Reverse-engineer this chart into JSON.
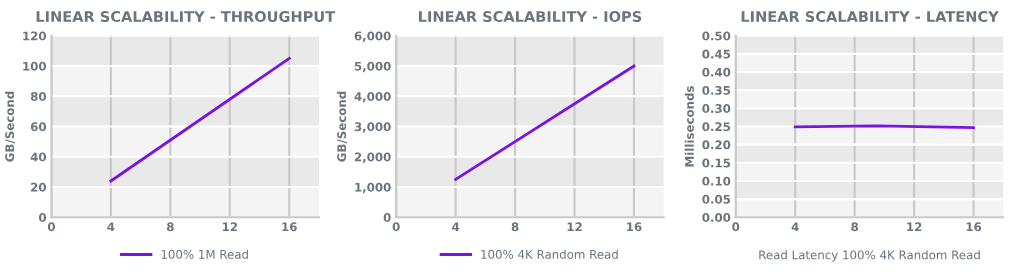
{
  "chart_data": [
    {
      "type": "line",
      "title": "LINEAR SCALABILITY - THROUGHPUT",
      "ylabel": "GB/Second",
      "x": [
        4,
        16
      ],
      "series": [
        {
          "name": "100% 1M Read",
          "color": "#7a12e6",
          "values": [
            24,
            105
          ]
        }
      ],
      "xlim": [
        0,
        18
      ],
      "xticks": [
        0,
        4,
        8,
        12,
        16
      ],
      "ylim": [
        0,
        120
      ],
      "yticks": [
        0,
        20,
        40,
        60,
        80,
        100,
        120
      ],
      "grid": true,
      "legend": "bottom"
    },
    {
      "type": "line",
      "title": "LINEAR SCALABILITY - IOPS",
      "ylabel": "GB/Second",
      "x": [
        4,
        16
      ],
      "series": [
        {
          "name": "100% 4K Random Read",
          "color": "#7a12e6",
          "values": [
            1250,
            5000
          ]
        }
      ],
      "xlim": [
        0,
        18
      ],
      "xticks": [
        0,
        4,
        8,
        12,
        16
      ],
      "ylim": [
        0,
        6000
      ],
      "yticks": [
        {
          "value": 0,
          "label": "0"
        },
        {
          "value": 1000,
          "label": "1,000"
        },
        {
          "value": 2000,
          "label": "2,000"
        },
        {
          "value": 3000,
          "label": "3,000"
        },
        {
          "value": 4000,
          "label": "4,000"
        },
        {
          "value": 5000,
          "label": "5,000"
        },
        {
          "value": 6000,
          "label": "6,000"
        }
      ],
      "grid": true,
      "legend": "bottom"
    },
    {
      "type": "line",
      "title": "LINEAR SCALABILITY - LATENCY",
      "ylabel": "Milliseconds",
      "xlabel": "Read Latency 100% 4K Random Read",
      "x": [
        4,
        9.5,
        16
      ],
      "series": [
        {
          "color": "#7a12e6",
          "values": [
            0.249,
            0.252,
            0.247
          ]
        }
      ],
      "xlim": [
        0,
        18
      ],
      "xticks": [
        0,
        4,
        8,
        12,
        16
      ],
      "ylim": [
        0,
        0.5
      ],
      "yticks": [
        {
          "value": 0,
          "label": "0.00"
        },
        {
          "value": 0.05,
          "label": "0.05"
        },
        {
          "value": 0.1,
          "label": "0.10"
        },
        {
          "value": 0.15,
          "label": "0.15"
        },
        {
          "value": 0.2,
          "label": "0.20"
        },
        {
          "value": 0.25,
          "label": "0.25"
        },
        {
          "value": 0.3,
          "label": "0.30"
        },
        {
          "value": 0.35,
          "label": "0.35"
        },
        {
          "value": 0.4,
          "label": "0.40"
        },
        {
          "value": 0.45,
          "label": "0.45"
        },
        {
          "value": 0.5,
          "label": "0.50"
        }
      ],
      "grid": true
    }
  ]
}
